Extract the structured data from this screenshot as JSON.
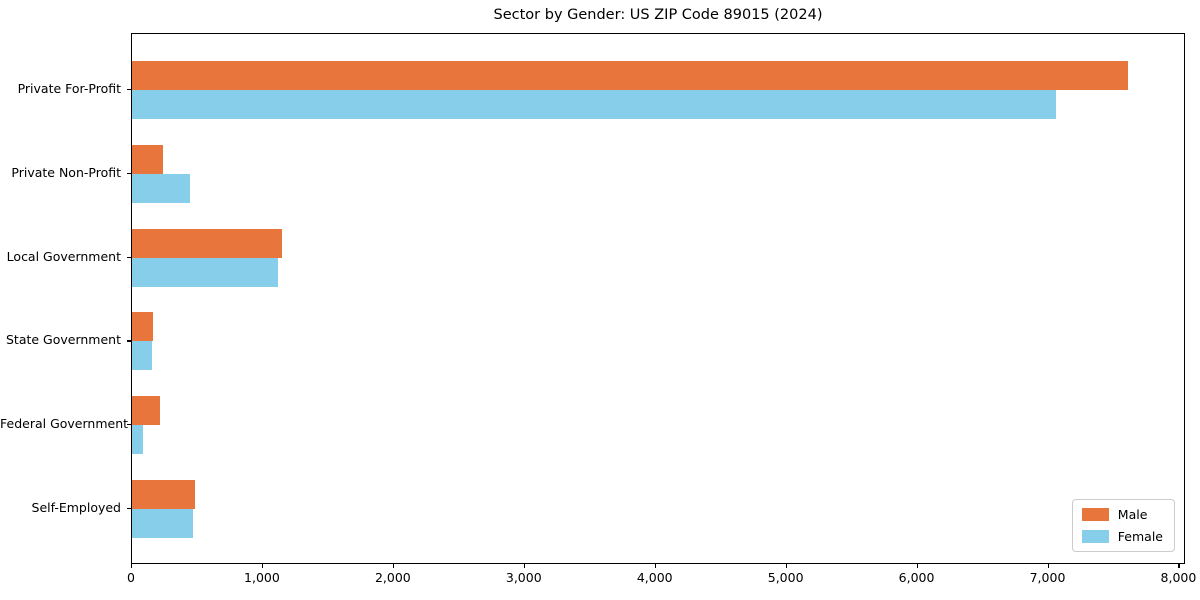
{
  "chart_data": {
    "type": "bar",
    "orientation": "horizontal",
    "title": "Sector by Gender: US ZIP Code 89015 (2024)",
    "categories": [
      "Private For-Profit",
      "Private Non-Profit",
      "Local Government",
      "State Government",
      "Federal Government",
      "Self-Employed"
    ],
    "series": [
      {
        "name": "Male",
        "color": "#e8763c",
        "values": [
          7620,
          240,
          1145,
          160,
          215,
          485
        ]
      },
      {
        "name": "Female",
        "color": "#87ceeb",
        "values": [
          7070,
          445,
          1115,
          155,
          85,
          465
        ]
      }
    ],
    "xlabel": "",
    "ylabel": "",
    "xlim": [
      0,
      8050
    ],
    "xticks": [
      0,
      1000,
      2000,
      3000,
      4000,
      5000,
      6000,
      7000,
      8000
    ],
    "xtick_labels": [
      "0",
      "1,000",
      "2,000",
      "3,000",
      "4,000",
      "5,000",
      "6,000",
      "7,000",
      "8,000"
    ],
    "grid": false,
    "legend": {
      "position": "lower right",
      "entries": [
        "Male",
        "Female"
      ]
    }
  }
}
